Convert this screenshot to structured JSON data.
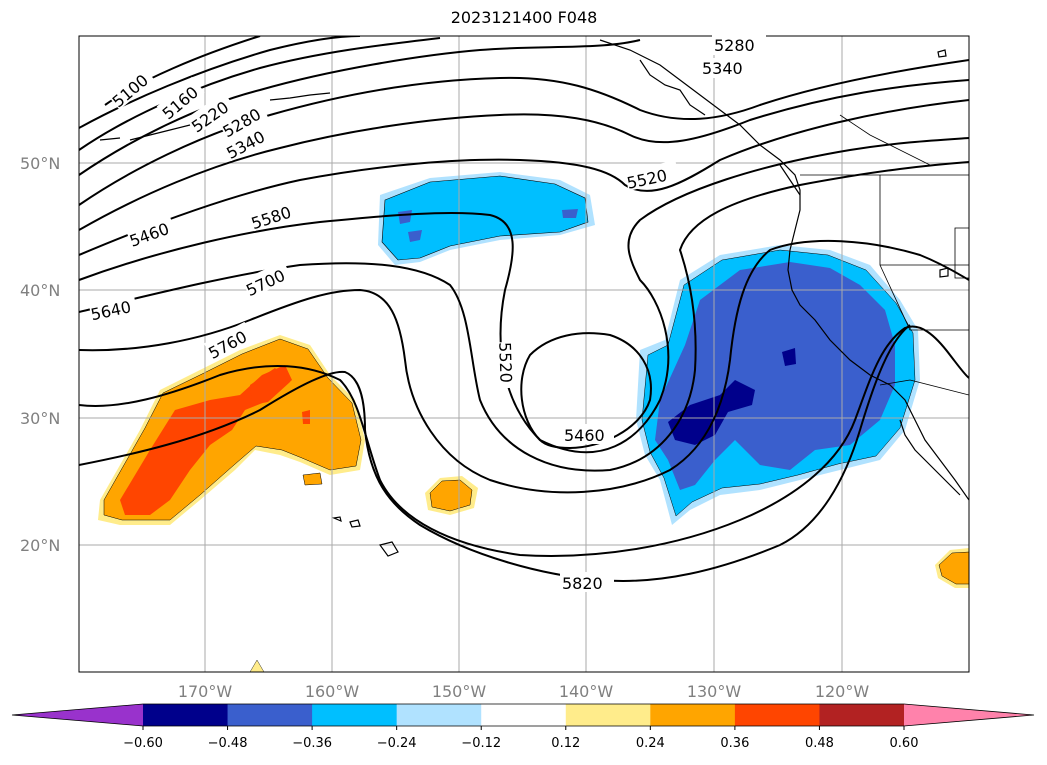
{
  "title": "2023121400 F048",
  "lat_labels": [
    "50°N",
    "40°N",
    "30°N",
    "20°N"
  ],
  "lon_labels": [
    "170°W",
    "160°W",
    "150°W",
    "140°W",
    "130°W",
    "120°W"
  ],
  "contour_labels": [
    "5100",
    "5160",
    "5220",
    "5280",
    "5340",
    "5460",
    "5580",
    "5640",
    "5700",
    "5760",
    "5520",
    "5460",
    "5820",
    "5280",
    "5340",
    "5520"
  ],
  "colorbar": {
    "ticks": [
      "−0.60",
      "−0.48",
      "−0.36",
      "−0.24",
      "−0.12",
      "0.12",
      "0.24",
      "0.36",
      "0.48",
      "0.60"
    ],
    "colors": [
      "#9932cc",
      "#00008b",
      "#3a5fcd",
      "#00bfff",
      "#b0e2ff",
      "#ffffff",
      "#ffec8b",
      "#ffa500",
      "#ff4500",
      "#b22222",
      "#ff82ab"
    ]
  },
  "fill_colors": {
    "strong_negative": "#00008b",
    "negative": "#3a5fcd",
    "weak_negative": "#00bfff",
    "very_weak_negative": "#b0e2ff",
    "weak_positive": "#ffec8b",
    "positive": "#ffa500",
    "strong_positive": "#ff4500"
  }
}
